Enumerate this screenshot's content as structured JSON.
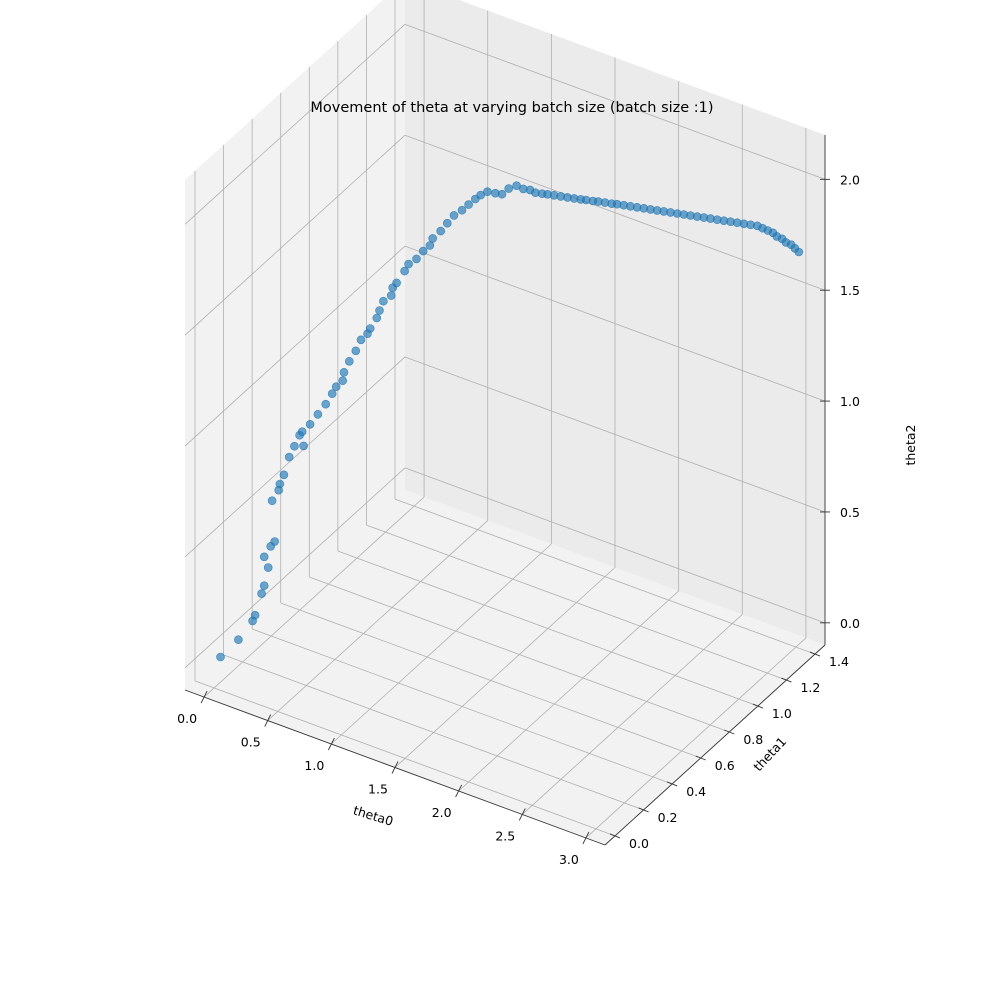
{
  "chart_data": {
    "type": "scatter",
    "projection": "3d",
    "title": "Movement of theta at varying batch size (batch size :1)",
    "xlabel": "theta0",
    "ylabel": "theta1",
    "zlabel": "theta2",
    "xlim": [
      -0.15,
      3.15
    ],
    "ylim": [
      -0.07,
      1.47
    ],
    "zlim": [
      -0.1,
      2.2
    ],
    "xticks": [
      "0.0",
      "0.5",
      "1.0",
      "1.5",
      "2.0",
      "2.5",
      "3.0"
    ],
    "yticks": [
      "0.0",
      "0.2",
      "0.4",
      "0.6",
      "0.8",
      "1.0",
      "1.2",
      "1.4"
    ],
    "zticks": [
      "0.0",
      "0.5",
      "1.0",
      "1.5",
      "2.0"
    ],
    "grid": true,
    "marker_color": "#1f77b4",
    "series": [
      {
        "x": [
          0.05,
          0.18,
          0.28,
          0.3,
          0.34,
          0.36,
          0.38,
          0.36,
          0.4,
          0.42,
          0.4,
          0.44,
          0.45,
          0.47,
          0.5,
          0.53,
          0.56,
          0.58,
          0.58,
          0.62,
          0.67,
          0.72,
          0.76,
          0.78,
          0.82,
          0.83,
          0.86,
          0.9,
          0.93,
          0.97,
          0.98,
          1.02,
          1.03,
          1.05,
          1.1,
          1.1,
          1.12,
          1.16,
          1.18,
          1.22,
          1.25,
          1.28,
          1.28,
          1.32,
          1.35,
          1.38,
          1.42,
          1.45,
          1.48,
          1.5,
          1.53,
          1.57,
          1.6,
          1.63,
          1.67,
          1.7,
          1.73,
          1.75,
          1.78,
          1.8,
          1.83,
          1.86,
          1.89,
          1.92,
          1.95,
          1.97,
          2.0,
          2.02,
          2.05,
          2.08,
          2.1,
          2.13,
          2.16,
          2.19,
          2.22,
          2.25,
          2.28,
          2.31,
          2.34,
          2.37,
          2.4,
          2.43,
          2.46,
          2.49,
          2.52,
          2.55,
          2.58,
          2.61,
          2.64,
          2.67,
          2.7,
          2.73,
          2.76,
          2.79,
          2.82,
          2.85,
          2.88,
          2.91,
          2.94,
          2.97,
          3.0
        ],
        "y": [
          0.0,
          0.01,
          0.02,
          0.02,
          0.03,
          0.03,
          0.04,
          0.03,
          0.04,
          0.05,
          0.05,
          0.06,
          0.06,
          0.07,
          0.08,
          0.09,
          0.1,
          0.1,
          0.11,
          0.12,
          0.13,
          0.14,
          0.15,
          0.16,
          0.17,
          0.17,
          0.18,
          0.19,
          0.2,
          0.21,
          0.22,
          0.23,
          0.24,
          0.25,
          0.26,
          0.27,
          0.28,
          0.3,
          0.31,
          0.33,
          0.35,
          0.37,
          0.39,
          0.41,
          0.43,
          0.45,
          0.47,
          0.49,
          0.51,
          0.53,
          0.55,
          0.57,
          0.59,
          0.61,
          0.63,
          0.65,
          0.67,
          0.69,
          0.71,
          0.73,
          0.75,
          0.77,
          0.79,
          0.81,
          0.83,
          0.85,
          0.87,
          0.89,
          0.91,
          0.93,
          0.95,
          0.97,
          0.99,
          1.01,
          1.03,
          1.05,
          1.07,
          1.09,
          1.11,
          1.13,
          1.15,
          1.17,
          1.19,
          1.21,
          1.23,
          1.25,
          1.27,
          1.29,
          1.31,
          1.33,
          1.35,
          1.37,
          1.38,
          1.39,
          1.4,
          1.4,
          1.41,
          1.41,
          1.42,
          1.42,
          1.42
        ],
        "z": [
          0.05,
          0.15,
          0.25,
          0.28,
          0.38,
          0.42,
          0.5,
          0.55,
          0.6,
          0.62,
          0.8,
          0.85,
          0.88,
          0.92,
          1.0,
          1.05,
          1.1,
          1.12,
          1.05,
          1.15,
          1.2,
          1.25,
          1.3,
          1.33,
          1.36,
          1.4,
          1.45,
          1.5,
          1.55,
          1.58,
          1.6,
          1.65,
          1.68,
          1.72,
          1.75,
          1.78,
          1.8,
          1.85,
          1.88,
          1.9,
          1.93,
          1.95,
          1.97,
          2.0,
          2.03,
          2.06,
          2.08,
          2.1,
          2.12,
          2.13,
          2.14,
          2.13,
          2.12,
          2.14,
          2.15,
          2.13,
          2.12,
          2.1,
          2.09,
          2.08,
          2.07,
          2.06,
          2.05,
          2.04,
          2.03,
          2.02,
          2.01,
          2.0,
          1.99,
          1.98,
          1.97,
          1.96,
          1.95,
          1.94,
          1.93,
          1.92,
          1.91,
          1.9,
          1.89,
          1.88,
          1.87,
          1.86,
          1.85,
          1.84,
          1.83,
          1.82,
          1.81,
          1.8,
          1.79,
          1.78,
          1.77,
          1.76,
          1.75,
          1.74,
          1.73,
          1.72,
          1.71,
          1.7,
          1.69,
          1.68,
          1.67
        ]
      }
    ]
  }
}
